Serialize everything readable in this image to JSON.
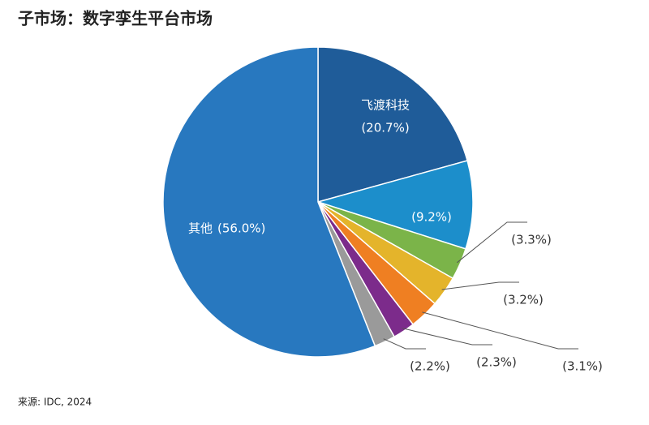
{
  "chart_data": {
    "type": "pie",
    "title": "子市场：数字孪生平台市场",
    "source": "来源: IDC, 2024",
    "categories": [
      "飞渡科技",
      null,
      null,
      null,
      null,
      null,
      null,
      "其他"
    ],
    "values": [
      20.7,
      9.2,
      3.3,
      3.2,
      3.1,
      2.3,
      2.2,
      56.0
    ],
    "value_labels": [
      "(20.7%)",
      "(9.2%)",
      "(3.3%)",
      "(3.2%)",
      "(3.1%)",
      "(2.3%)",
      "(2.2%)",
      "(56.0%)"
    ],
    "colors": [
      "#1f5c99",
      "#1c8ecb",
      "#7bb449",
      "#e4b42b",
      "#ef7f22",
      "#7c2b8b",
      "#9a9a9a",
      "#2878bf"
    ]
  }
}
